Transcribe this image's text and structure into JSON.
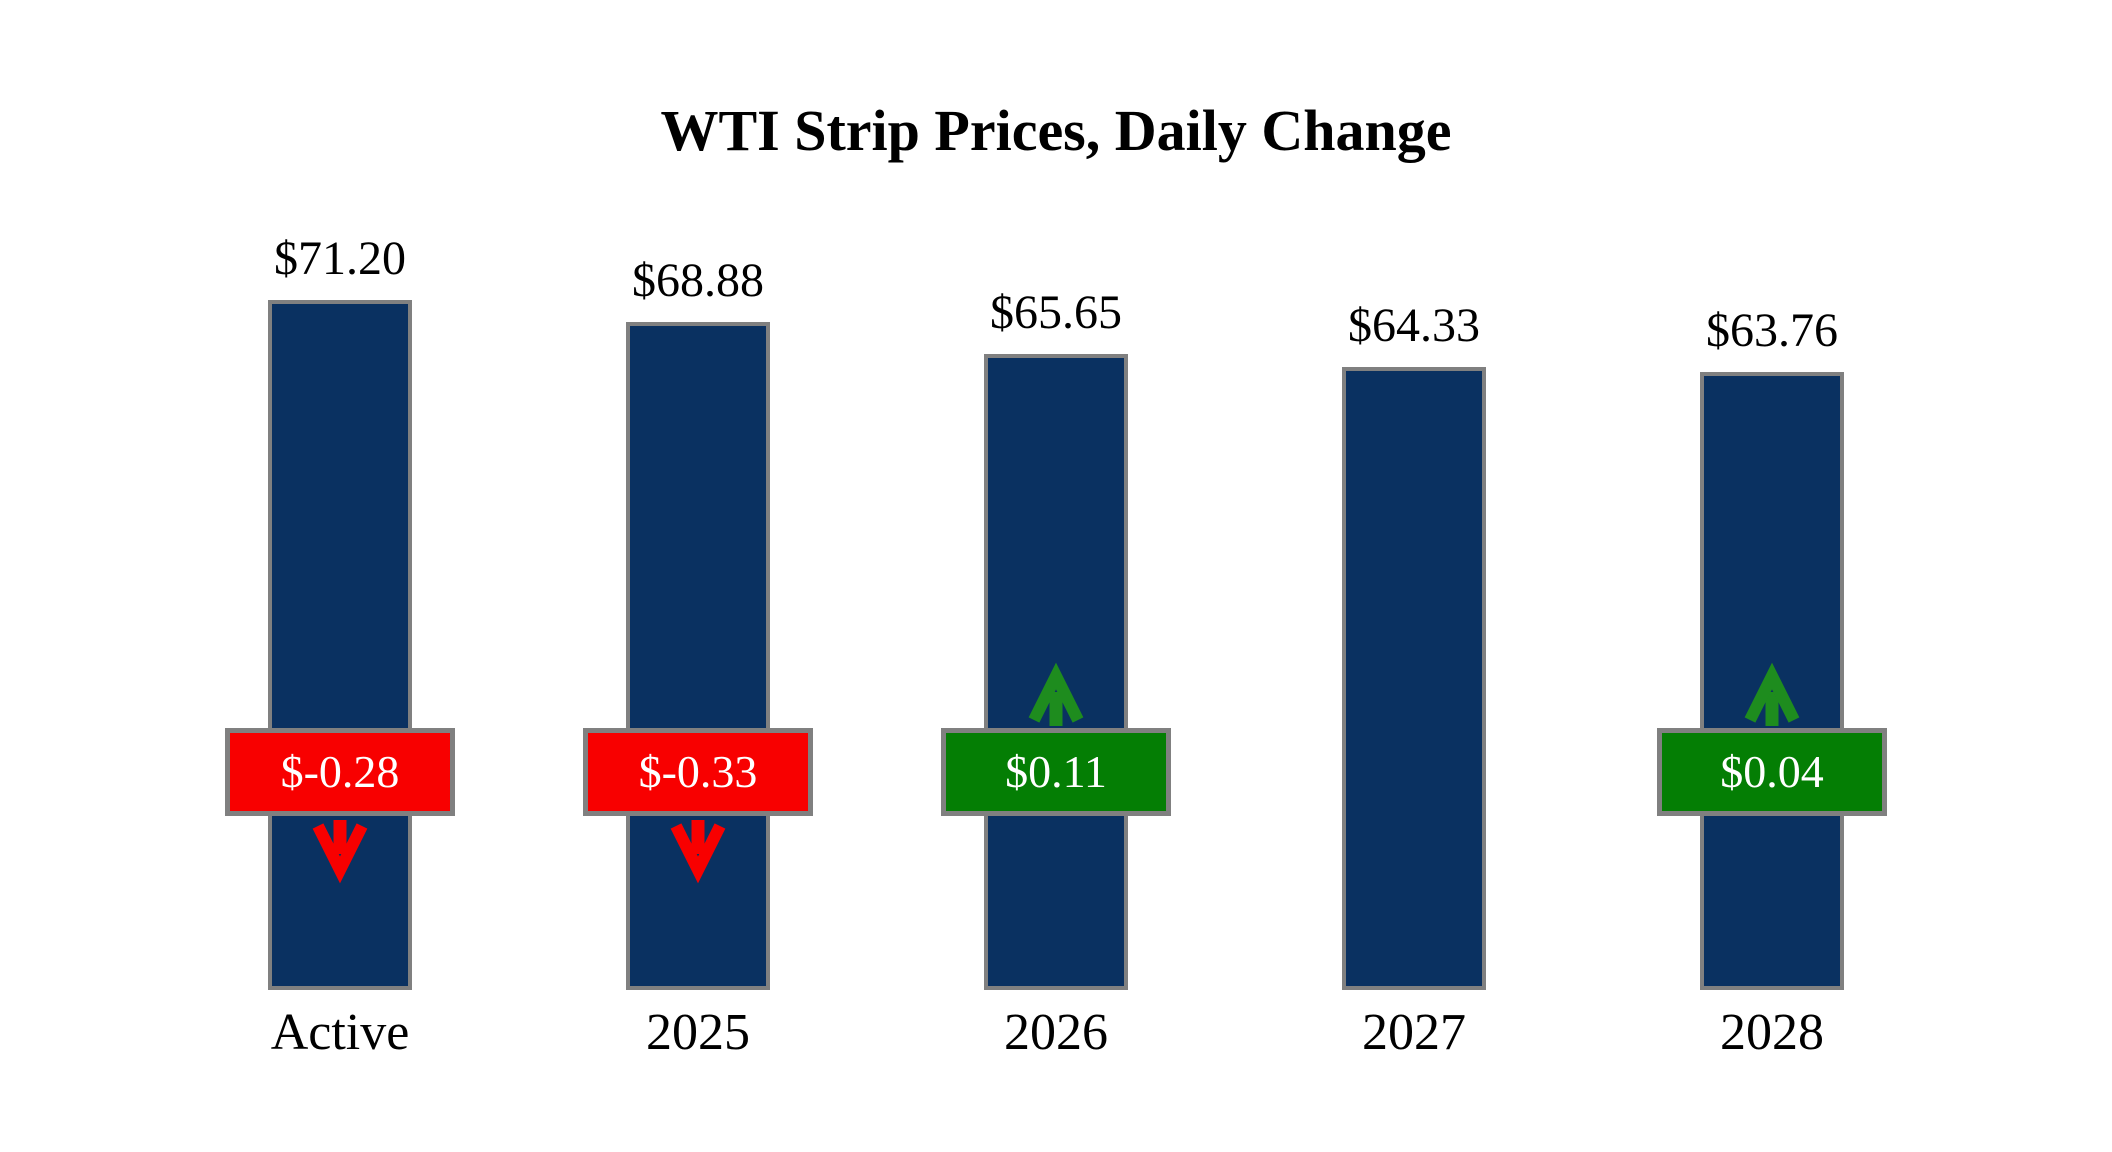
{
  "title": "WTI Strip Prices, Daily Change",
  "colors": {
    "background": "#ffffff",
    "text": "#000000",
    "bar_fill": "#0a3161",
    "bar_border": "#808080",
    "badge_border": "#808080",
    "badge_text": "#ffffff",
    "negative": "#f80000",
    "positive": "#047e04",
    "negative_arrow": "#f80000",
    "positive_arrow": "#1e8c1e"
  },
  "chart_data": {
    "type": "bar",
    "title": "WTI Strip Prices, Daily Change",
    "categories": [
      "Active",
      "2025",
      "2026",
      "2027",
      "2028"
    ],
    "values": [
      71.2,
      68.88,
      65.65,
      64.33,
      63.76
    ],
    "value_labels": [
      "$71.20",
      "$68.88",
      "$65.65",
      "$64.33",
      "$63.76"
    ],
    "daily_changes": [
      -0.28,
      -0.33,
      0.11,
      null,
      0.04
    ],
    "change_labels": [
      "$-0.28",
      "$-0.33",
      "$0.11",
      null,
      "$0.04"
    ],
    "change_directions": [
      "down",
      "down",
      "up",
      null,
      "up"
    ],
    "xlabel": "",
    "ylabel": "",
    "ylim": [
      0,
      71.2
    ],
    "grid": false,
    "legend": false,
    "axes_hidden": true
  }
}
